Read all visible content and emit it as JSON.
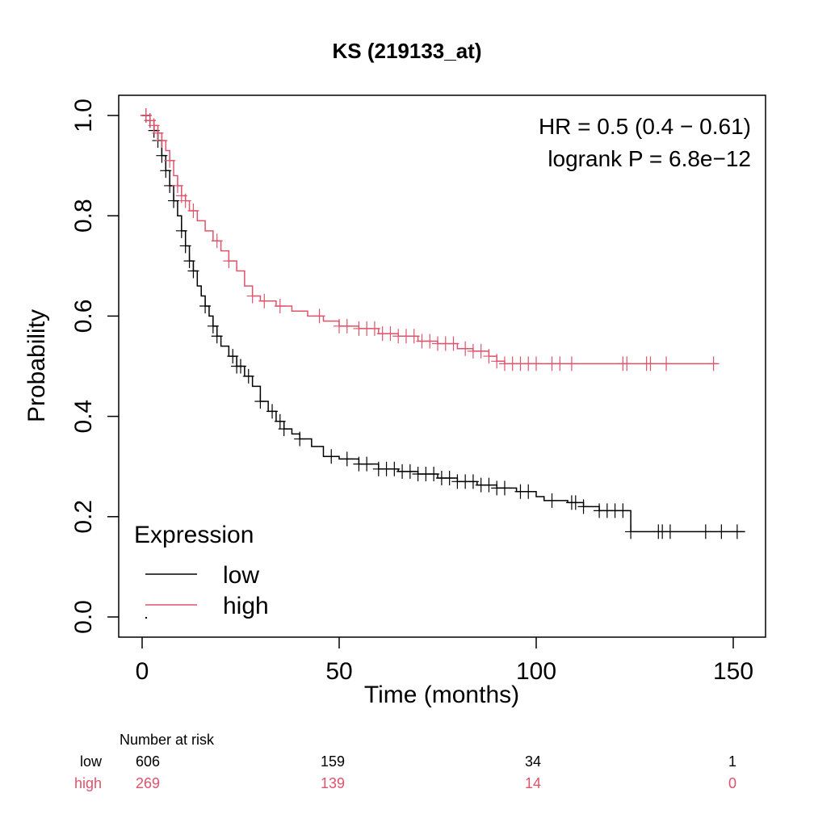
{
  "chart_data": {
    "type": "line",
    "subtype": "kaplan-meier",
    "title": "KS (219133_at)",
    "xlabel": "Time (months)",
    "ylabel": "Probability",
    "xlim": [
      0,
      150
    ],
    "ylim": [
      0,
      1
    ],
    "x_ticks": [
      "0",
      "50",
      "100",
      "150"
    ],
    "y_ticks": [
      "0.0",
      "0.2",
      "0.4",
      "0.6",
      "0.8",
      "1.0"
    ],
    "annotations": [
      "HR = 0.5 (0.4 − 0.61)",
      "logrank P = 6.8e−12"
    ],
    "legend": {
      "title": "Expression",
      "placement": "bottom-left",
      "entries": [
        {
          "label": "low",
          "color": "#000000"
        },
        {
          "label": "high",
          "color": "#DF536B"
        }
      ]
    },
    "series": [
      {
        "name": "low",
        "color": "#000000",
        "steps": [
          [
            0,
            1.0
          ],
          [
            2,
            0.99
          ],
          [
            3,
            0.97
          ],
          [
            4,
            0.95
          ],
          [
            5,
            0.92
          ],
          [
            6,
            0.89
          ],
          [
            7,
            0.86
          ],
          [
            8,
            0.83
          ],
          [
            9,
            0.8
          ],
          [
            10,
            0.77
          ],
          [
            11,
            0.74
          ],
          [
            12,
            0.71
          ],
          [
            13,
            0.69
          ],
          [
            14,
            0.66
          ],
          [
            15,
            0.64
          ],
          [
            16,
            0.62
          ],
          [
            17,
            0.6
          ],
          [
            18,
            0.58
          ],
          [
            19,
            0.56
          ],
          [
            20,
            0.54
          ],
          [
            22,
            0.52
          ],
          [
            24,
            0.5
          ],
          [
            26,
            0.48
          ],
          [
            28,
            0.46
          ],
          [
            30,
            0.43
          ],
          [
            32,
            0.41
          ],
          [
            34,
            0.39
          ],
          [
            36,
            0.375
          ],
          [
            38,
            0.365
          ],
          [
            40,
            0.355
          ],
          [
            43,
            0.34
          ],
          [
            46,
            0.32
          ],
          [
            50,
            0.315
          ],
          [
            55,
            0.305
          ],
          [
            60,
            0.295
          ],
          [
            65,
            0.29
          ],
          [
            70,
            0.285
          ],
          [
            75,
            0.277
          ],
          [
            80,
            0.27
          ],
          [
            85,
            0.263
          ],
          [
            90,
            0.257
          ],
          [
            95,
            0.25
          ],
          [
            100,
            0.24
          ],
          [
            102,
            0.232
          ],
          [
            108,
            0.228
          ],
          [
            112,
            0.22
          ],
          [
            116,
            0.212
          ],
          [
            124,
            0.2
          ],
          [
            124,
            0.17
          ],
          [
            153,
            0.17
          ]
        ],
        "censor_times": [
          1,
          2,
          3,
          4,
          5,
          6,
          7,
          8,
          10,
          11,
          12,
          13,
          16,
          18,
          19,
          23,
          24,
          25,
          27,
          30,
          33,
          35,
          36,
          40,
          48,
          52,
          55,
          57,
          60,
          62,
          64,
          66,
          68,
          70,
          72,
          74,
          76,
          78,
          80,
          82,
          84,
          86,
          88,
          90,
          92,
          96,
          98,
          104,
          109,
          110,
          112,
          116,
          118,
          120,
          122,
          124,
          131,
          132,
          134,
          143,
          147,
          151
        ]
      },
      {
        "name": "high",
        "color": "#DF536B",
        "steps": [
          [
            0,
            1.0
          ],
          [
            2,
            0.99
          ],
          [
            3,
            0.98
          ],
          [
            4,
            0.965
          ],
          [
            5,
            0.95
          ],
          [
            6,
            0.93
          ],
          [
            7,
            0.91
          ],
          [
            8,
            0.88
          ],
          [
            9,
            0.86
          ],
          [
            10,
            0.84
          ],
          [
            11,
            0.83
          ],
          [
            12,
            0.81
          ],
          [
            14,
            0.79
          ],
          [
            16,
            0.77
          ],
          [
            18,
            0.75
          ],
          [
            20,
            0.73
          ],
          [
            22,
            0.71
          ],
          [
            24,
            0.69
          ],
          [
            26,
            0.66
          ],
          [
            28,
            0.64
          ],
          [
            30,
            0.63
          ],
          [
            34,
            0.62
          ],
          [
            38,
            0.61
          ],
          [
            42,
            0.6
          ],
          [
            46,
            0.59
          ],
          [
            50,
            0.58
          ],
          [
            55,
            0.575
          ],
          [
            60,
            0.565
          ],
          [
            65,
            0.56
          ],
          [
            70,
            0.55
          ],
          [
            75,
            0.545
          ],
          [
            80,
            0.535
          ],
          [
            84,
            0.53
          ],
          [
            88,
            0.52
          ],
          [
            90,
            0.51
          ],
          [
            92,
            0.505
          ],
          [
            146,
            0.505
          ]
        ],
        "censor_times": [
          1,
          2,
          3,
          4,
          5,
          7,
          9,
          10,
          11,
          13,
          19,
          22,
          28,
          31,
          35,
          45,
          50,
          52,
          55,
          57,
          59,
          61,
          63,
          65,
          67,
          69,
          71,
          73,
          75,
          77,
          79,
          82,
          84,
          86,
          88,
          90,
          92,
          94,
          96,
          98,
          100,
          104,
          106,
          109,
          122,
          123,
          128,
          129,
          133,
          145
        ]
      }
    ],
    "risk_table": {
      "header": "Number at risk",
      "times": [
        0,
        50,
        100,
        150
      ],
      "rows": [
        {
          "label": "low",
          "color": "#000000",
          "values": [
            "606",
            "159",
            "34",
            "1"
          ]
        },
        {
          "label": "high",
          "color": "#DF536B",
          "values": [
            "269",
            "139",
            "14",
            "0"
          ]
        }
      ]
    }
  }
}
